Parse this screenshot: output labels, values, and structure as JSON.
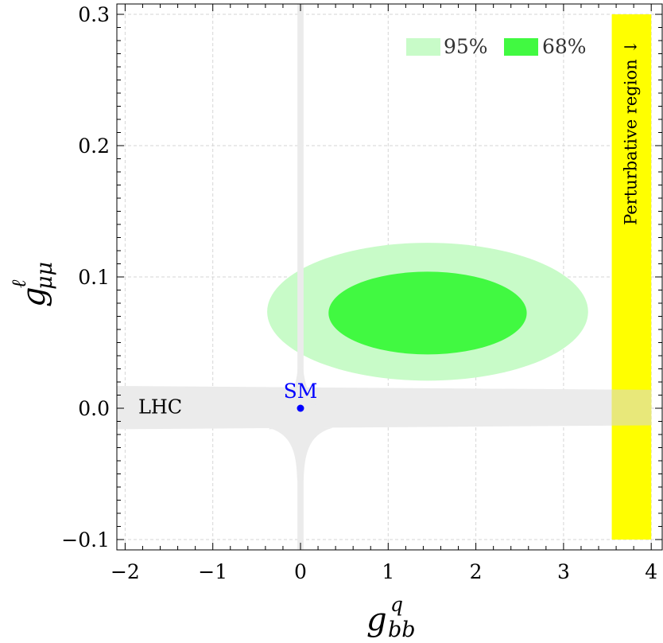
{
  "chart_data": {
    "type": "contour",
    "title": "",
    "xlabel": {
      "base": "g",
      "sup": "q",
      "sub": "bb"
    },
    "ylabel": {
      "base": "g",
      "sup": "ℓ",
      "sub": "μμ"
    },
    "xlim": [
      -2.15,
      4.1
    ],
    "ylim": [
      -0.108,
      0.307
    ],
    "xticks": [
      -2,
      -1,
      0,
      1,
      2,
      3,
      4
    ],
    "xtick_labels": [
      "−2",
      "−1",
      "0",
      "1",
      "2",
      "3",
      "4"
    ],
    "yticks": [
      -0.1,
      0.0,
      0.1,
      0.2,
      0.3
    ],
    "ytick_labels": [
      "−0.1",
      "0.0",
      "0.1",
      "0.2",
      "0.3"
    ],
    "grid": true,
    "legend": {
      "placement": "top-right",
      "entries": [
        {
          "label": "95%",
          "color": "#c8fbc8"
        },
        {
          "label": "68%",
          "color": "#41f941"
        }
      ]
    },
    "regions": [
      {
        "name": "95%",
        "shape": "ellipse",
        "center": [
          1.45,
          0.0735
        ],
        "semi_x": 1.83,
        "semi_y": 0.0525,
        "color": "#c8fbc8"
      },
      {
        "name": "68%",
        "shape": "ellipse",
        "center": [
          1.45,
          0.0725
        ],
        "semi_x": 1.13,
        "semi_y": 0.0315,
        "color": "#41f941"
      },
      {
        "name": "LHC",
        "shape": "band",
        "x_range": [
          -2.15,
          4.0
        ],
        "y_top_left": 0.017,
        "y_top_right": 0.014,
        "y_bottom_left": -0.016,
        "y_bottom_right": -0.013,
        "color": "#ebebeb"
      },
      {
        "name": "LHC vertical",
        "shape": "vertical",
        "x_center": 0.0,
        "half_width": 0.035,
        "y_range": [
          -0.108,
          0.307
        ],
        "color": "#ebebeb"
      },
      {
        "name": "Perturbative region",
        "shape": "rect",
        "x_range": [
          3.55,
          4.0
        ],
        "y_range": [
          -0.1,
          0.3
        ],
        "color": "#ffff00"
      }
    ],
    "points": [
      {
        "label": "SM",
        "x": 0,
        "y": 0,
        "color": "#0000ff"
      }
    ],
    "annotations": [
      {
        "text": "LHC",
        "x": -1.85,
        "y": 0.0
      },
      {
        "text": "Perturbative region ↓",
        "x": 3.78,
        "y": 0.21,
        "rotation": -90
      }
    ]
  }
}
